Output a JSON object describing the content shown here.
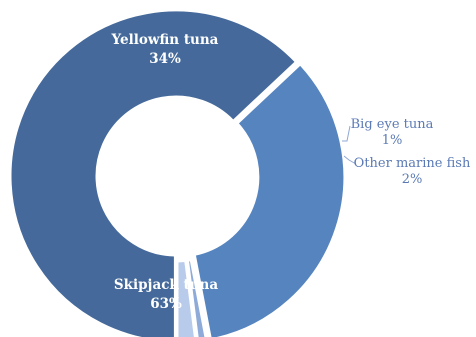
{
  "chart_data": {
    "type": "pie",
    "variant": "donut",
    "title": "",
    "slices": [
      {
        "label": "Skipjack tuna",
        "value": 63,
        "value_label": "63%",
        "color": "#44699a",
        "label_position": "inside"
      },
      {
        "label": "Yellowfin tuna",
        "value": 34,
        "value_label": "34%",
        "color": "#5584bf",
        "label_position": "inside"
      },
      {
        "label": "Big eye tuna",
        "value": 1,
        "value_label": "1%",
        "color": "#8eaad8",
        "label_position": "outside"
      },
      {
        "label": "Other marine fish",
        "value": 2,
        "value_label": "2%",
        "color": "#b9cbea",
        "label_position": "outside"
      }
    ],
    "legend": "none"
  }
}
